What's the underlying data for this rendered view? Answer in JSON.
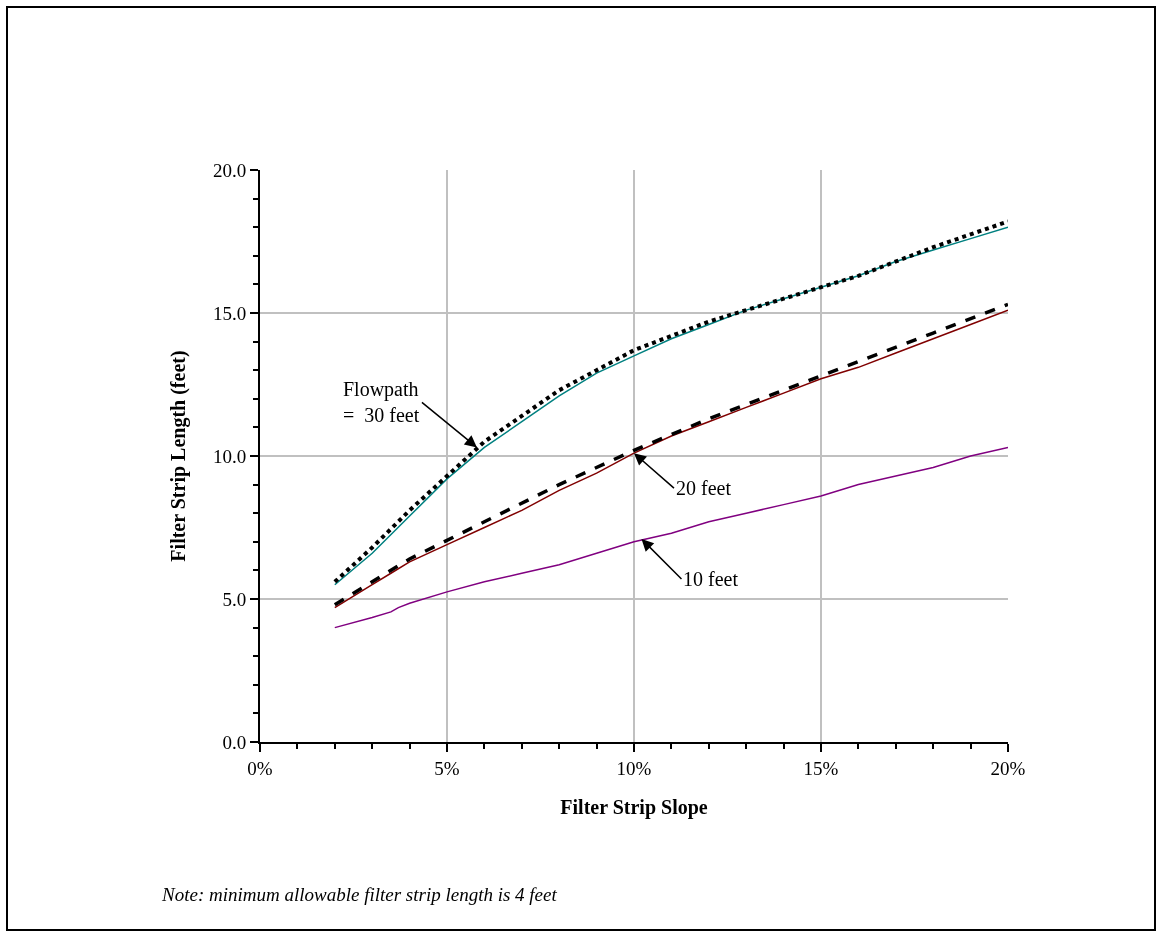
{
  "chart_data": {
    "type": "line",
    "xlabel": "Filter Strip Slope",
    "ylabel": "Filter Strip Length (feet)",
    "xlim": [
      0,
      20
    ],
    "xticks": [
      {
        "value": 0,
        "label": "0%"
      },
      {
        "value": 5,
        "label": "5%"
      },
      {
        "value": 10,
        "label": "10%"
      },
      {
        "value": 15,
        "label": "15%"
      },
      {
        "value": 20,
        "label": "20%"
      }
    ],
    "ylim": [
      0,
      20
    ],
    "yticks": [
      {
        "value": 0,
        "label": "0.0"
      },
      {
        "value": 5,
        "label": "5.0"
      },
      {
        "value": 10,
        "label": "10.0"
      },
      {
        "value": 15,
        "label": "15.0"
      },
      {
        "value": 20,
        "label": "20.0"
      }
    ],
    "grid": true,
    "marker": "none",
    "series": [
      {
        "color": "#008080",
        "line_style": "solid",
        "x": [
          2,
          3,
          4,
          5,
          6,
          7,
          8,
          9,
          10,
          11,
          12,
          13,
          14,
          15,
          16,
          17,
          18,
          19,
          20
        ],
        "values": [
          5.5,
          6.6,
          7.9,
          9.2,
          10.3,
          11.2,
          12.1,
          12.9,
          13.5,
          14.1,
          14.6,
          15.1,
          15.5,
          15.9,
          16.3,
          16.8,
          17.2,
          17.6,
          18.0
        ]
      },
      {
        "color": "#000000",
        "line_style": "dotted",
        "x": [
          2,
          3,
          4,
          5,
          6,
          7,
          8,
          9,
          10,
          12,
          14,
          16,
          18,
          20
        ],
        "values": [
          5.6,
          6.8,
          8.1,
          9.3,
          10.5,
          11.4,
          12.3,
          13.0,
          13.7,
          14.7,
          15.5,
          16.3,
          17.3,
          18.2
        ]
      },
      {
        "color": "#800000",
        "line_style": "solid",
        "x": [
          2,
          3,
          3.5,
          4,
          5,
          6,
          7,
          8,
          9,
          10,
          11,
          12,
          13,
          14,
          15,
          16,
          17,
          18,
          19,
          20
        ],
        "values": [
          4.7,
          5.5,
          5.9,
          6.3,
          6.9,
          7.5,
          8.1,
          8.8,
          9.4,
          10.1,
          10.7,
          11.2,
          11.7,
          12.2,
          12.7,
          13.1,
          13.6,
          14.1,
          14.6,
          15.1
        ]
      },
      {
        "color": "#000000",
        "line_style": "dashed",
        "x": [
          2,
          4,
          6,
          8,
          10,
          12,
          14,
          16,
          18,
          20
        ],
        "values": [
          4.8,
          6.4,
          7.7,
          9.0,
          10.2,
          11.3,
          12.3,
          13.3,
          14.3,
          15.3
        ]
      },
      {
        "color": "#800080",
        "line_style": "solid",
        "x": [
          2,
          3,
          3.5,
          3.7,
          4,
          5,
          6,
          7,
          8,
          9,
          10,
          11,
          12,
          13,
          14,
          15,
          16,
          17,
          18,
          19,
          20
        ],
        "values": [
          4.0,
          4.35,
          4.55,
          4.7,
          4.85,
          5.25,
          5.6,
          5.9,
          6.2,
          6.6,
          7.0,
          7.3,
          7.7,
          8.0,
          8.3,
          8.6,
          9.0,
          9.3,
          9.6,
          10.0,
          10.3
        ]
      }
    ],
    "annotations": [
      {
        "text": "Flowpath\n=  30 feet",
        "x": 5.8,
        "y": 10.3
      },
      {
        "text": "20 feet",
        "x": 10.0,
        "y": 10.1
      },
      {
        "text": "10 feet",
        "x": 10.2,
        "y": 7.1
      },
      "Note: minimum allowable filter strip length is 4 feet"
    ]
  }
}
